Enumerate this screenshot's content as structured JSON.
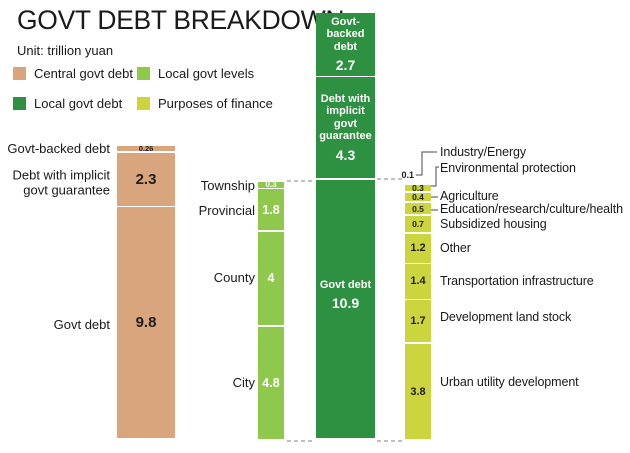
{
  "title": "GOVT DEBT BREAKDOWN",
  "unit_label": "Unit: trillion yuan",
  "legend": [
    {
      "label": "Central govt debt",
      "color": "#d9a57c"
    },
    {
      "label": "Local govt levels",
      "color": "#8ec84d"
    },
    {
      "label": "Local govt debt",
      "color": "#2e9041"
    },
    {
      "label": "Purposes of finance",
      "color": "#ccd53d"
    }
  ],
  "chart_data": {
    "type": "bar",
    "stacked": true,
    "unit": "trillion yuan",
    "legend_position": "top-left",
    "bars": [
      {
        "name": "Central govt debt",
        "color": "#d9a57c",
        "segments": [
          {
            "label": "Govt-backed debt",
            "value": 0.26
          },
          {
            "label": "Debt with  implicit govt guarantee",
            "value": 2.3
          },
          {
            "label": "Govt debt",
            "value": 9.8
          }
        ]
      },
      {
        "name": "Local govt levels",
        "color": "#8ec84d",
        "segments": [
          {
            "label": "Township",
            "value": 0.3
          },
          {
            "label": "Provincial",
            "value": 1.8
          },
          {
            "label": "County",
            "value": 4
          },
          {
            "label": "City",
            "value": 4.8
          }
        ]
      },
      {
        "name": "Local govt debt",
        "color": "#2e9041",
        "segments": [
          {
            "label": "Govt-backed debt",
            "value": 2.7
          },
          {
            "label": "Debt with implicit govt guarantee",
            "value": 4.3
          },
          {
            "label": "Govt debt",
            "value": 10.9
          }
        ]
      },
      {
        "name": "Purposes of finance",
        "color": "#ccd53d",
        "segments": [
          {
            "label": "Industry/Energy",
            "value": 0.1
          },
          {
            "label": "Environmental protection",
            "value": 0.3
          },
          {
            "label": "Agriculture",
            "value": 0.4
          },
          {
            "label": "Education/research/culture/health",
            "value": 0.5
          },
          {
            "label": "Subsidized housing",
            "value": 0.7
          },
          {
            "label": "Other",
            "value": 1.2
          },
          {
            "label": "Transportation infrastructure",
            "value": 1.4
          },
          {
            "label": "Development land stock",
            "value": 1.7
          },
          {
            "label": "Urban utility development",
            "value": 3.8
          }
        ]
      }
    ]
  }
}
